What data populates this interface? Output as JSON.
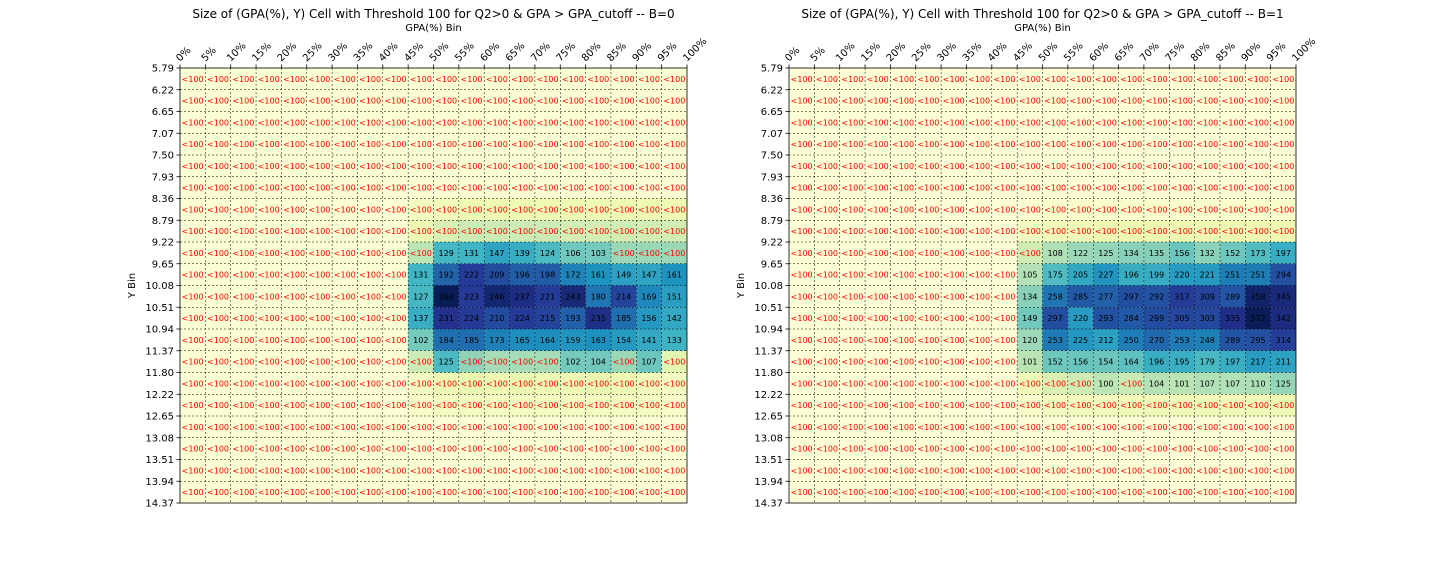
{
  "colors": {
    "below_threshold_text": "#ff0000",
    "value_text": "#000000",
    "grid_line": "#000000",
    "colormap": "YlGnBu"
  },
  "chart_data": [
    {
      "type": "heatmap",
      "title": "Size of (GPA(%), Y) Cell with Threshold 100 for Q2>0 & GPA > GPA_cutoff -- B=0",
      "xlabel": "GPA(%) Bin",
      "ylabel": "Y Bin",
      "x_ticks": [
        "0%",
        "5%",
        "10%",
        "15%",
        "20%",
        "25%",
        "30%",
        "35%",
        "40%",
        "45%",
        "50%",
        "55%",
        "60%",
        "65%",
        "70%",
        "75%",
        "80%",
        "85%",
        "90%",
        "95%",
        "100%"
      ],
      "y_ticks": [
        "5.79",
        "6.22",
        "6.65",
        "7.07",
        "7.50",
        "7.93",
        "8.36",
        "8.79",
        "9.22",
        "9.65",
        "10.08",
        "10.51",
        "10.94",
        "11.37",
        "11.80",
        "12.22",
        "12.65",
        "13.08",
        "13.51",
        "13.94",
        "14.37"
      ],
      "threshold": 100,
      "below_label": "<100",
      "color_max": 260,
      "values": [
        [
          5,
          5,
          5,
          5,
          5,
          5,
          5,
          5,
          5,
          5,
          5,
          5,
          5,
          5,
          5,
          5,
          5,
          5,
          5,
          5
        ],
        [
          5,
          5,
          5,
          5,
          5,
          5,
          5,
          5,
          5,
          5,
          5,
          5,
          5,
          5,
          5,
          5,
          5,
          5,
          5,
          5
        ],
        [
          5,
          5,
          5,
          5,
          5,
          5,
          5,
          5,
          5,
          5,
          5,
          5,
          5,
          5,
          5,
          5,
          5,
          5,
          5,
          5
        ],
        [
          5,
          5,
          5,
          5,
          5,
          5,
          5,
          5,
          5,
          5,
          5,
          5,
          5,
          5,
          5,
          5,
          5,
          5,
          5,
          5
        ],
        [
          5,
          5,
          5,
          5,
          5,
          5,
          5,
          5,
          5,
          5,
          5,
          5,
          5,
          5,
          5,
          5,
          5,
          5,
          5,
          5
        ],
        [
          5,
          5,
          5,
          5,
          5,
          5,
          5,
          5,
          5,
          5,
          5,
          5,
          5,
          5,
          5,
          5,
          5,
          5,
          5,
          5
        ],
        [
          5,
          5,
          5,
          5,
          5,
          5,
          5,
          5,
          5,
          20,
          25,
          30,
          30,
          30,
          30,
          30,
          30,
          30,
          30,
          30
        ],
        [
          5,
          5,
          5,
          5,
          5,
          5,
          5,
          5,
          5,
          30,
          50,
          60,
          60,
          60,
          60,
          55,
          55,
          55,
          55,
          55
        ],
        [
          5,
          5,
          5,
          5,
          5,
          5,
          5,
          5,
          5,
          70,
          129,
          131,
          147,
          139,
          124,
          106,
          103,
          85,
          85,
          85
        ],
        [
          5,
          5,
          5,
          5,
          5,
          5,
          5,
          5,
          5,
          131,
          192,
          222,
          209,
          196,
          198,
          172,
          161,
          149,
          147,
          161
        ],
        [
          5,
          5,
          5,
          5,
          5,
          5,
          5,
          5,
          5,
          127,
          260,
          223,
          246,
          237,
          221,
          243,
          180,
          214,
          169,
          151
        ],
        [
          5,
          5,
          5,
          5,
          5,
          5,
          5,
          5,
          5,
          137,
          231,
          224,
          210,
          224,
          215,
          193,
          235,
          185,
          156,
          142
        ],
        [
          5,
          5,
          5,
          5,
          5,
          5,
          5,
          5,
          5,
          102,
          184,
          185,
          173,
          165,
          164,
          159,
          163,
          154,
          141,
          133
        ],
        [
          5,
          5,
          5,
          5,
          5,
          5,
          5,
          5,
          5,
          60,
          125,
          90,
          80,
          80,
          80,
          102,
          104,
          85,
          107,
          40
        ],
        [
          5,
          5,
          5,
          5,
          5,
          5,
          5,
          5,
          5,
          20,
          30,
          35,
          30,
          35,
          30,
          30,
          35,
          30,
          25,
          20
        ],
        [
          5,
          5,
          5,
          5,
          5,
          5,
          5,
          5,
          5,
          15,
          20,
          20,
          20,
          20,
          20,
          20,
          20,
          20,
          20,
          15
        ],
        [
          5,
          5,
          5,
          5,
          5,
          5,
          5,
          5,
          5,
          5,
          5,
          5,
          5,
          5,
          5,
          5,
          5,
          5,
          5,
          5
        ],
        [
          5,
          5,
          5,
          5,
          5,
          5,
          5,
          5,
          5,
          5,
          5,
          5,
          5,
          5,
          5,
          5,
          5,
          5,
          5,
          5
        ],
        [
          5,
          5,
          5,
          5,
          5,
          5,
          5,
          5,
          5,
          5,
          5,
          5,
          5,
          5,
          5,
          5,
          5,
          5,
          5,
          5
        ],
        [
          5,
          5,
          5,
          5,
          5,
          5,
          5,
          5,
          5,
          5,
          5,
          5,
          5,
          5,
          5,
          5,
          5,
          5,
          5,
          5
        ]
      ]
    },
    {
      "type": "heatmap",
      "title": "Size of (GPA(%), Y) Cell with Threshold 100 for Q2>0 & GPA > GPA_cutoff -- B=1",
      "xlabel": "GPA(%) Bin",
      "ylabel": "Y Bin",
      "x_ticks": [
        "0%",
        "5%",
        "10%",
        "15%",
        "20%",
        "25%",
        "30%",
        "35%",
        "40%",
        "45%",
        "50%",
        "55%",
        "60%",
        "65%",
        "70%",
        "75%",
        "80%",
        "85%",
        "90%",
        "95%",
        "100%"
      ],
      "y_ticks": [
        "5.79",
        "6.22",
        "6.65",
        "7.07",
        "7.50",
        "7.93",
        "8.36",
        "8.79",
        "9.22",
        "9.65",
        "10.08",
        "10.51",
        "10.94",
        "11.37",
        "11.80",
        "12.22",
        "12.65",
        "13.08",
        "13.51",
        "13.94",
        "14.37"
      ],
      "threshold": 100,
      "below_label": "<100",
      "color_max": 372,
      "values": [
        [
          5,
          5,
          5,
          5,
          5,
          5,
          5,
          5,
          5,
          5,
          5,
          5,
          5,
          5,
          5,
          5,
          5,
          5,
          5,
          5
        ],
        [
          5,
          5,
          5,
          5,
          5,
          5,
          5,
          5,
          5,
          5,
          5,
          5,
          5,
          5,
          5,
          5,
          5,
          5,
          5,
          5
        ],
        [
          5,
          5,
          5,
          5,
          5,
          5,
          5,
          5,
          5,
          5,
          5,
          5,
          5,
          5,
          5,
          5,
          5,
          5,
          5,
          5
        ],
        [
          5,
          5,
          5,
          5,
          5,
          5,
          5,
          5,
          5,
          5,
          5,
          5,
          5,
          5,
          5,
          5,
          5,
          5,
          5,
          5
        ],
        [
          5,
          5,
          5,
          5,
          5,
          5,
          5,
          5,
          5,
          5,
          5,
          5,
          5,
          5,
          5,
          5,
          5,
          5,
          5,
          5
        ],
        [
          5,
          5,
          5,
          5,
          5,
          5,
          5,
          5,
          5,
          5,
          5,
          5,
          5,
          5,
          5,
          5,
          5,
          5,
          5,
          5
        ],
        [
          5,
          5,
          5,
          5,
          5,
          5,
          5,
          5,
          5,
          10,
          15,
          15,
          15,
          15,
          15,
          15,
          15,
          15,
          15,
          15
        ],
        [
          5,
          5,
          5,
          5,
          5,
          5,
          5,
          5,
          5,
          30,
          40,
          40,
          45,
          45,
          45,
          45,
          45,
          45,
          45,
          45
        ],
        [
          5,
          5,
          5,
          5,
          5,
          5,
          5,
          5,
          5,
          80,
          108,
          122,
          125,
          134,
          135,
          156,
          132,
          152,
          173,
          197
        ],
        [
          5,
          5,
          5,
          5,
          5,
          5,
          5,
          5,
          5,
          105,
          175,
          205,
          227,
          196,
          199,
          220,
          221,
          251,
          251,
          294
        ],
        [
          5,
          5,
          5,
          5,
          5,
          5,
          5,
          5,
          5,
          134,
          258,
          285,
          277,
          297,
          292,
          317,
          309,
          289,
          358,
          345
        ],
        [
          5,
          5,
          5,
          5,
          5,
          5,
          5,
          5,
          5,
          149,
          297,
          220,
          293,
          284,
          299,
          305,
          303,
          335,
          372,
          342
        ],
        [
          5,
          5,
          5,
          5,
          5,
          5,
          5,
          5,
          5,
          120,
          253,
          225,
          212,
          250,
          270,
          253,
          248,
          289,
          295,
          314
        ],
        [
          5,
          5,
          5,
          5,
          5,
          5,
          5,
          5,
          5,
          101,
          152,
          156,
          154,
          164,
          196,
          195,
          179,
          197,
          217,
          211
        ],
        [
          5,
          5,
          5,
          5,
          5,
          5,
          5,
          5,
          5,
          40,
          70,
          85,
          100,
          90,
          104,
          101,
          107,
          107,
          110,
          125
        ],
        [
          5,
          5,
          5,
          5,
          5,
          5,
          5,
          5,
          5,
          20,
          30,
          35,
          35,
          40,
          40,
          40,
          40,
          40,
          40,
          45
        ],
        [
          5,
          5,
          5,
          5,
          5,
          5,
          5,
          5,
          5,
          5,
          5,
          5,
          5,
          5,
          5,
          5,
          5,
          5,
          5,
          5
        ],
        [
          5,
          5,
          5,
          5,
          5,
          5,
          5,
          5,
          5,
          5,
          5,
          5,
          5,
          5,
          5,
          5,
          5,
          5,
          5,
          5
        ],
        [
          5,
          5,
          5,
          5,
          5,
          5,
          5,
          5,
          5,
          5,
          5,
          5,
          5,
          5,
          5,
          5,
          5,
          5,
          5,
          5
        ],
        [
          5,
          5,
          5,
          5,
          5,
          5,
          5,
          5,
          5,
          5,
          5,
          5,
          5,
          5,
          5,
          5,
          5,
          5,
          5,
          5
        ]
      ]
    }
  ]
}
